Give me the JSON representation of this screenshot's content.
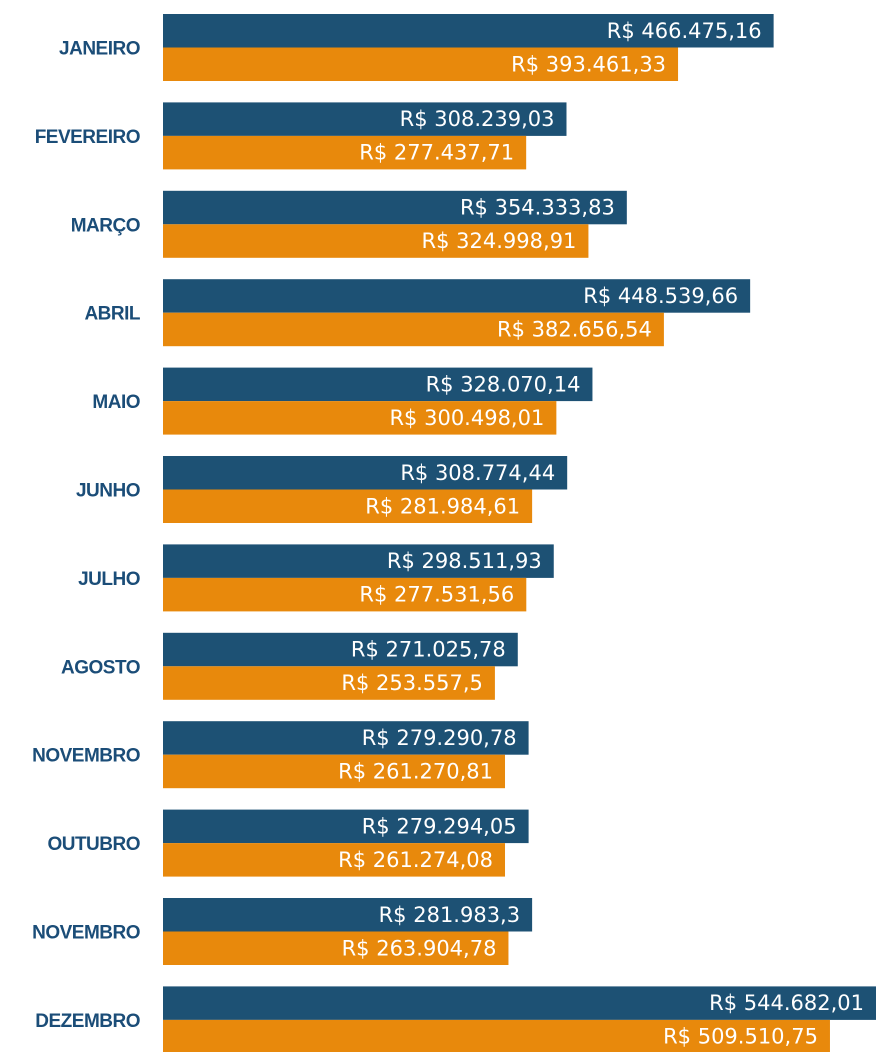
{
  "chart_data": {
    "type": "hbar",
    "categories": [
      "JANEIRO",
      "FEVEREIRO",
      "MARÇO",
      "ABRIL",
      "MAIO",
      "JUNHO",
      "JULHO",
      "AGOSTO",
      "NOVEMBRO",
      "OUTUBRO",
      "NOVEMBRO",
      "DEZEMBRO"
    ],
    "series": [
      {
        "color": "#1d5174",
        "values": [
          466475.16,
          308239.03,
          354333.83,
          448539.66,
          328070.14,
          308774.44,
          298511.93,
          271025.78,
          279290.78,
          279294.05,
          281983.3,
          544682.01
        ],
        "value_labels": [
          "R$ 466.475,16",
          "R$ 308.239,03",
          "R$ 354.333,83",
          "R$ 448.539,66",
          "R$ 328.070,14",
          "R$ 308.774,44",
          "R$ 298.511,93",
          "R$ 271.025,78",
          "R$ 279.290,78",
          "R$ 279.294,05",
          "R$ 281.983,3",
          "R$ 544.682,01"
        ]
      },
      {
        "color": "#e8890c",
        "values": [
          393461.33,
          277437.71,
          324998.91,
          382656.54,
          300498.01,
          281984.61,
          277531.56,
          253557.5,
          261270.81,
          261274.08,
          263904.78,
          509510.75
        ],
        "value_labels": [
          "R$ 393.461,33",
          "R$ 277.437,71",
          "R$ 324.998,91",
          "R$ 382.656,54",
          "R$ 300.498,01",
          "R$ 281.984,61",
          "R$ 277.531,56",
          "R$ 253.557,5",
          "R$ 261.270,81",
          "R$ 261.274,08",
          "R$ 263.904,78",
          "R$ 509.510,75"
        ]
      }
    ]
  }
}
